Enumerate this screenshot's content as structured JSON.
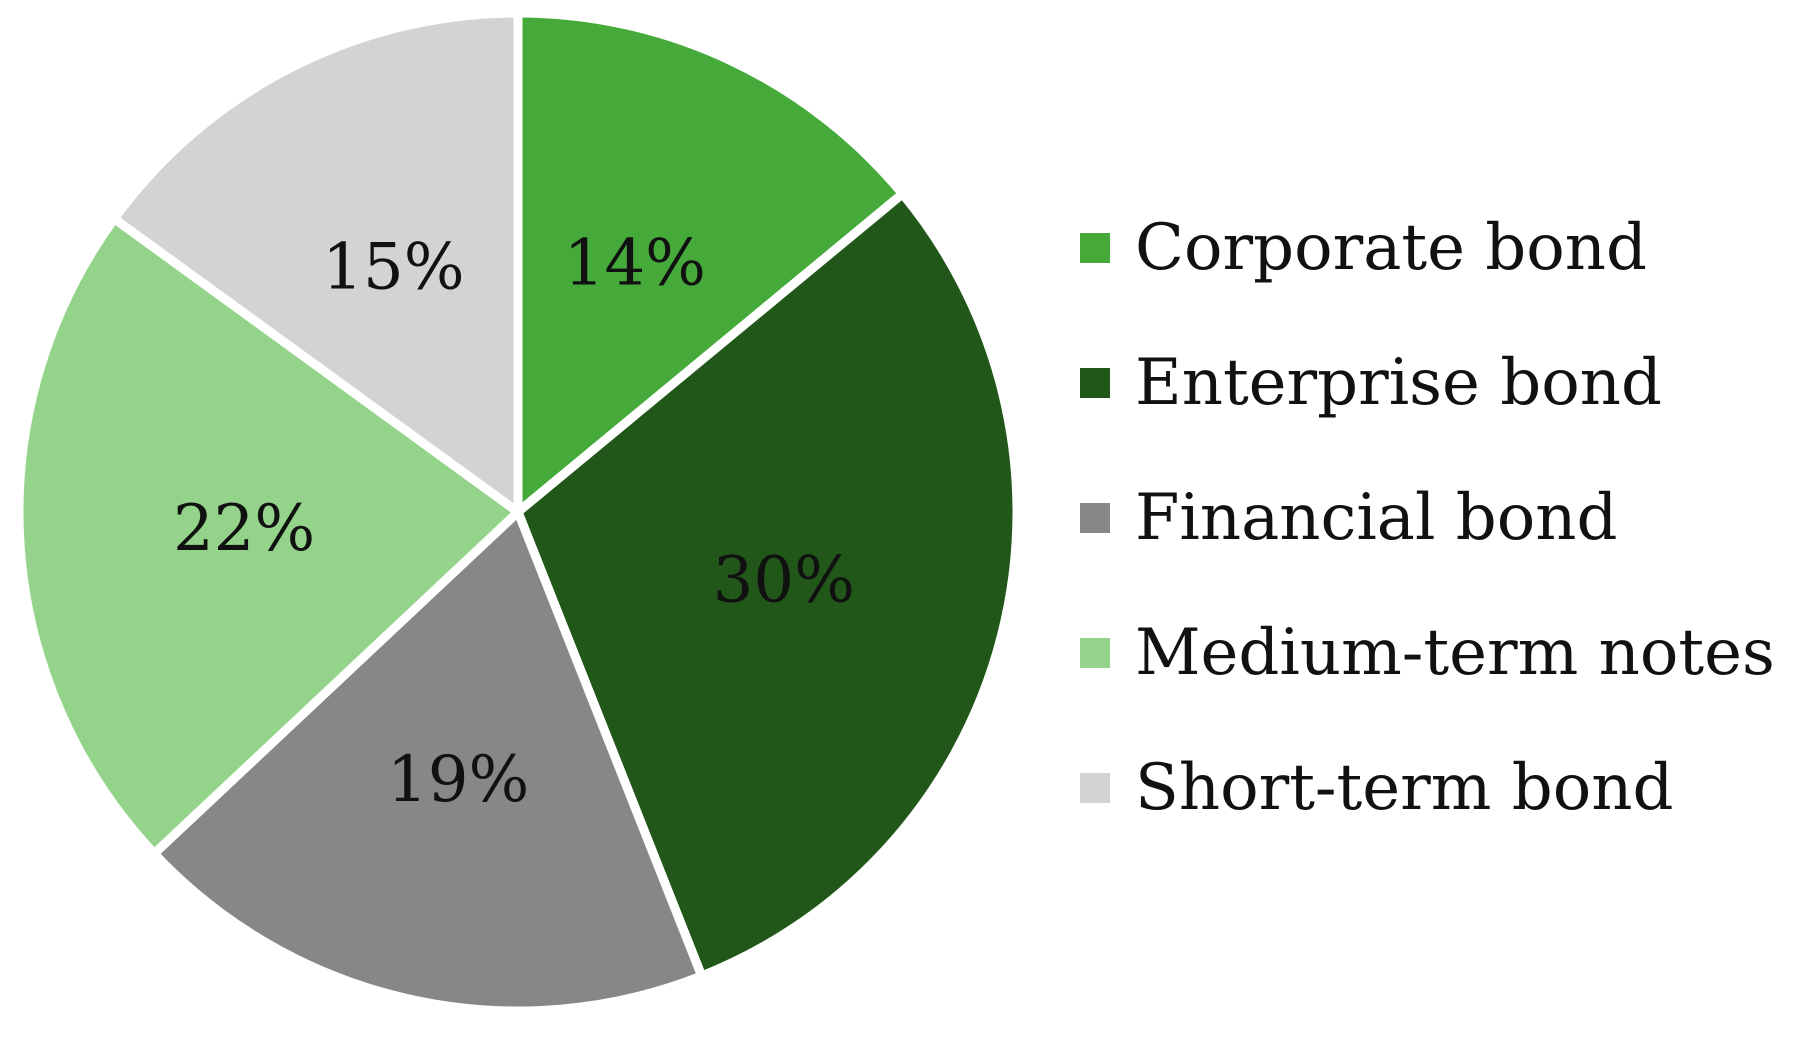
{
  "chart_data": {
    "type": "pie",
    "categories": [
      "Corporate bond",
      "Enterprise bond",
      "Financial bond",
      "Medium-term notes",
      "Short-term bond"
    ],
    "values": [
      14,
      30,
      19,
      22,
      15
    ],
    "value_labels": [
      "14%",
      "30%",
      "19%",
      "22%",
      "15%"
    ],
    "colors": [
      "#45aa3a",
      "#22571a",
      "#878787",
      "#94d48a",
      "#d3d3d3"
    ],
    "start_angle": "12 o'clock",
    "direction": "clockwise",
    "legend": {
      "placement": "right",
      "items": [
        {
          "label": "Corporate bond",
          "color": "#45aa3a"
        },
        {
          "label": "Enterprise bond",
          "color": "#22571a"
        },
        {
          "label": "Financial bond",
          "color": "#878787"
        },
        {
          "label": "Medium-term notes",
          "color": "#94d48a"
        },
        {
          "label": "Short-term bond",
          "color": "#d3d3d3"
        }
      ]
    }
  }
}
